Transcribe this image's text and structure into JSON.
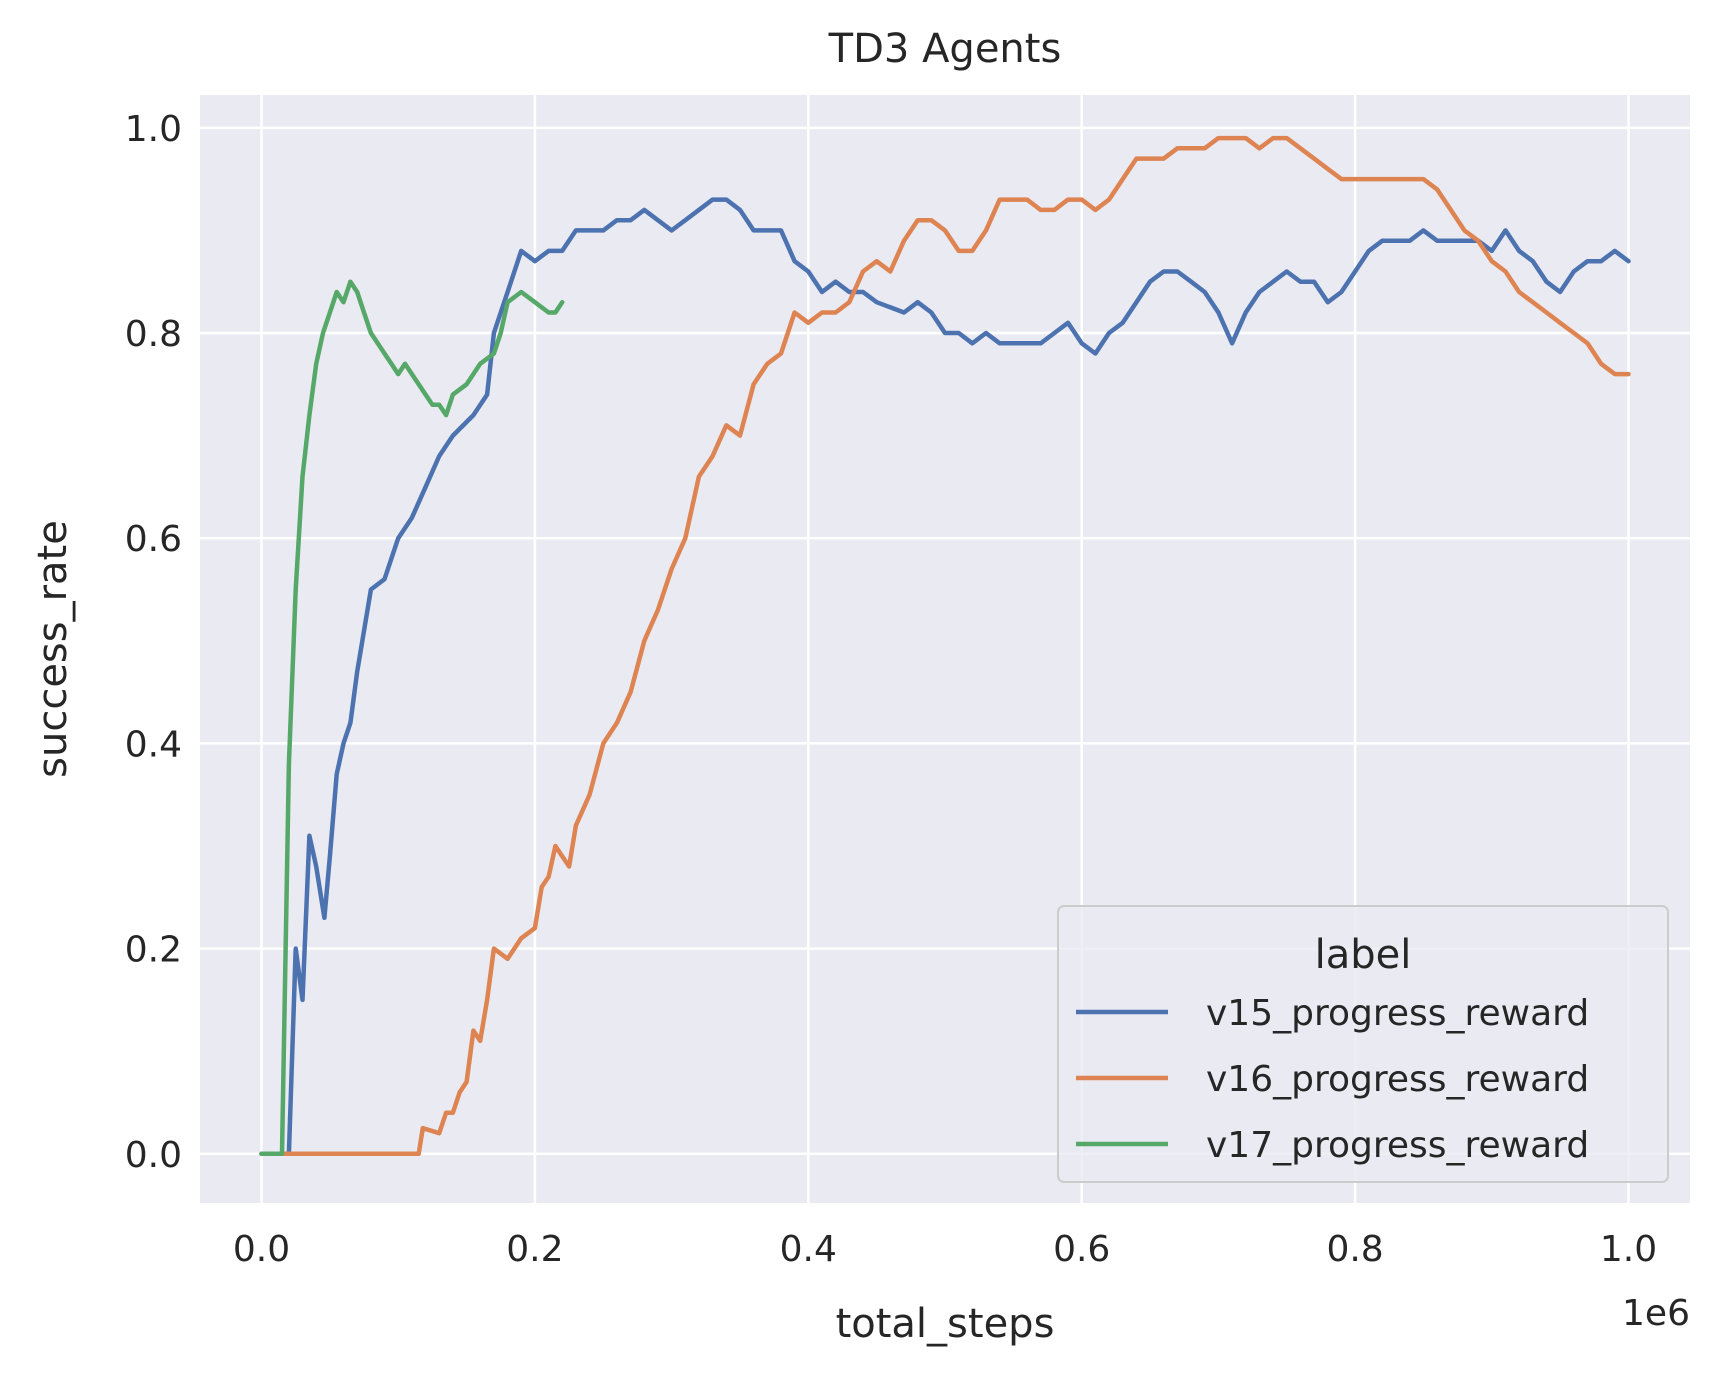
{
  "chart_data": {
    "type": "line",
    "title": "TD3 Agents",
    "xlabel": "total_steps",
    "ylabel": "success_rate",
    "x_offset_label": "1e6",
    "xlim": [
      -0.045,
      1.045
    ],
    "ylim": [
      -0.048,
      1.032
    ],
    "x_ticks": [
      0.0,
      0.2,
      0.4,
      0.6,
      0.8,
      1.0
    ],
    "x_tick_labels": [
      "0.0",
      "0.2",
      "0.4",
      "0.6",
      "0.8",
      "1.0"
    ],
    "y_ticks": [
      0.0,
      0.2,
      0.4,
      0.6,
      0.8,
      1.0
    ],
    "y_tick_labels": [
      "0.0",
      "0.2",
      "0.4",
      "0.6",
      "0.8",
      "1.0"
    ],
    "grid": true,
    "legend": {
      "title": "label",
      "placement": "lower-right"
    },
    "series": [
      {
        "name": "v15_progress_reward",
        "color": "#4c72b0",
        "points": [
          [
            0.0,
            0.0
          ],
          [
            0.02,
            0.0
          ],
          [
            0.025,
            0.2
          ],
          [
            0.03,
            0.15
          ],
          [
            0.035,
            0.31
          ],
          [
            0.04,
            0.28
          ],
          [
            0.046,
            0.23
          ],
          [
            0.05,
            0.29
          ],
          [
            0.055,
            0.37
          ],
          [
            0.06,
            0.4
          ],
          [
            0.065,
            0.42
          ],
          [
            0.07,
            0.47
          ],
          [
            0.08,
            0.55
          ],
          [
            0.09,
            0.56
          ],
          [
            0.1,
            0.6
          ],
          [
            0.11,
            0.62
          ],
          [
            0.12,
            0.65
          ],
          [
            0.13,
            0.68
          ],
          [
            0.14,
            0.7
          ],
          [
            0.155,
            0.72
          ],
          [
            0.165,
            0.74
          ],
          [
            0.17,
            0.8
          ],
          [
            0.18,
            0.84
          ],
          [
            0.19,
            0.88
          ],
          [
            0.2,
            0.87
          ],
          [
            0.21,
            0.88
          ],
          [
            0.22,
            0.88
          ],
          [
            0.23,
            0.9
          ],
          [
            0.25,
            0.9
          ],
          [
            0.26,
            0.91
          ],
          [
            0.27,
            0.91
          ],
          [
            0.28,
            0.92
          ],
          [
            0.29,
            0.91
          ],
          [
            0.3,
            0.9
          ],
          [
            0.31,
            0.91
          ],
          [
            0.32,
            0.92
          ],
          [
            0.33,
            0.93
          ],
          [
            0.34,
            0.93
          ],
          [
            0.35,
            0.92
          ],
          [
            0.36,
            0.9
          ],
          [
            0.38,
            0.9
          ],
          [
            0.39,
            0.87
          ],
          [
            0.4,
            0.86
          ],
          [
            0.41,
            0.84
          ],
          [
            0.42,
            0.85
          ],
          [
            0.43,
            0.84
          ],
          [
            0.44,
            0.84
          ],
          [
            0.45,
            0.83
          ],
          [
            0.47,
            0.82
          ],
          [
            0.48,
            0.83
          ],
          [
            0.49,
            0.82
          ],
          [
            0.5,
            0.8
          ],
          [
            0.51,
            0.8
          ],
          [
            0.52,
            0.79
          ],
          [
            0.53,
            0.8
          ],
          [
            0.54,
            0.79
          ],
          [
            0.55,
            0.79
          ],
          [
            0.56,
            0.79
          ],
          [
            0.57,
            0.79
          ],
          [
            0.58,
            0.8
          ],
          [
            0.59,
            0.81
          ],
          [
            0.6,
            0.79
          ],
          [
            0.61,
            0.78
          ],
          [
            0.62,
            0.8
          ],
          [
            0.63,
            0.81
          ],
          [
            0.64,
            0.83
          ],
          [
            0.65,
            0.85
          ],
          [
            0.66,
            0.86
          ],
          [
            0.67,
            0.86
          ],
          [
            0.68,
            0.85
          ],
          [
            0.69,
            0.84
          ],
          [
            0.7,
            0.82
          ],
          [
            0.71,
            0.79
          ],
          [
            0.72,
            0.82
          ],
          [
            0.73,
            0.84
          ],
          [
            0.74,
            0.85
          ],
          [
            0.75,
            0.86
          ],
          [
            0.76,
            0.85
          ],
          [
            0.77,
            0.85
          ],
          [
            0.78,
            0.83
          ],
          [
            0.79,
            0.84
          ],
          [
            0.8,
            0.86
          ],
          [
            0.81,
            0.88
          ],
          [
            0.82,
            0.89
          ],
          [
            0.83,
            0.89
          ],
          [
            0.84,
            0.89
          ],
          [
            0.85,
            0.9
          ],
          [
            0.86,
            0.89
          ],
          [
            0.87,
            0.89
          ],
          [
            0.88,
            0.89
          ],
          [
            0.89,
            0.89
          ],
          [
            0.9,
            0.88
          ],
          [
            0.91,
            0.9
          ],
          [
            0.92,
            0.88
          ],
          [
            0.93,
            0.87
          ],
          [
            0.94,
            0.85
          ],
          [
            0.95,
            0.84
          ],
          [
            0.96,
            0.86
          ],
          [
            0.97,
            0.87
          ],
          [
            0.98,
            0.87
          ],
          [
            0.99,
            0.88
          ],
          [
            1.0,
            0.87
          ]
        ]
      },
      {
        "name": "v16_progress_reward",
        "color": "#dd8452",
        "points": [
          [
            0.0,
            0.0
          ],
          [
            0.1,
            0.0
          ],
          [
            0.115,
            0.0
          ],
          [
            0.118,
            0.025
          ],
          [
            0.13,
            0.02
          ],
          [
            0.135,
            0.04
          ],
          [
            0.14,
            0.04
          ],
          [
            0.145,
            0.06
          ],
          [
            0.15,
            0.07
          ],
          [
            0.155,
            0.12
          ],
          [
            0.16,
            0.11
          ],
          [
            0.165,
            0.15
          ],
          [
            0.17,
            0.2
          ],
          [
            0.18,
            0.19
          ],
          [
            0.19,
            0.21
          ],
          [
            0.2,
            0.22
          ],
          [
            0.205,
            0.26
          ],
          [
            0.21,
            0.27
          ],
          [
            0.215,
            0.3
          ],
          [
            0.22,
            0.29
          ],
          [
            0.225,
            0.28
          ],
          [
            0.23,
            0.32
          ],
          [
            0.24,
            0.35
          ],
          [
            0.25,
            0.4
          ],
          [
            0.26,
            0.42
          ],
          [
            0.27,
            0.45
          ],
          [
            0.28,
            0.5
          ],
          [
            0.29,
            0.53
          ],
          [
            0.3,
            0.57
          ],
          [
            0.31,
            0.6
          ],
          [
            0.32,
            0.66
          ],
          [
            0.33,
            0.68
          ],
          [
            0.34,
            0.71
          ],
          [
            0.35,
            0.7
          ],
          [
            0.36,
            0.75
          ],
          [
            0.37,
            0.77
          ],
          [
            0.38,
            0.78
          ],
          [
            0.39,
            0.82
          ],
          [
            0.4,
            0.81
          ],
          [
            0.41,
            0.82
          ],
          [
            0.42,
            0.82
          ],
          [
            0.43,
            0.83
          ],
          [
            0.44,
            0.86
          ],
          [
            0.45,
            0.87
          ],
          [
            0.46,
            0.86
          ],
          [
            0.47,
            0.89
          ],
          [
            0.48,
            0.91
          ],
          [
            0.49,
            0.91
          ],
          [
            0.5,
            0.9
          ],
          [
            0.51,
            0.88
          ],
          [
            0.52,
            0.88
          ],
          [
            0.53,
            0.9
          ],
          [
            0.54,
            0.93
          ],
          [
            0.55,
            0.93
          ],
          [
            0.56,
            0.93
          ],
          [
            0.57,
            0.92
          ],
          [
            0.58,
            0.92
          ],
          [
            0.59,
            0.93
          ],
          [
            0.6,
            0.93
          ],
          [
            0.61,
            0.92
          ],
          [
            0.62,
            0.93
          ],
          [
            0.63,
            0.95
          ],
          [
            0.64,
            0.97
          ],
          [
            0.65,
            0.97
          ],
          [
            0.66,
            0.97
          ],
          [
            0.67,
            0.98
          ],
          [
            0.69,
            0.98
          ],
          [
            0.7,
            0.99
          ],
          [
            0.72,
            0.99
          ],
          [
            0.73,
            0.98
          ],
          [
            0.74,
            0.99
          ],
          [
            0.75,
            0.99
          ],
          [
            0.76,
            0.98
          ],
          [
            0.77,
            0.97
          ],
          [
            0.78,
            0.96
          ],
          [
            0.79,
            0.95
          ],
          [
            0.82,
            0.95
          ],
          [
            0.85,
            0.95
          ],
          [
            0.86,
            0.94
          ],
          [
            0.87,
            0.92
          ],
          [
            0.88,
            0.9
          ],
          [
            0.89,
            0.89
          ],
          [
            0.9,
            0.87
          ],
          [
            0.91,
            0.86
          ],
          [
            0.92,
            0.84
          ],
          [
            0.93,
            0.83
          ],
          [
            0.94,
            0.82
          ],
          [
            0.95,
            0.81
          ],
          [
            0.96,
            0.8
          ],
          [
            0.97,
            0.79
          ],
          [
            0.98,
            0.77
          ],
          [
            0.99,
            0.76
          ],
          [
            1.0,
            0.76
          ]
        ]
      },
      {
        "name": "v17_progress_reward",
        "color": "#55a868",
        "points": [
          [
            0.0,
            0.0
          ],
          [
            0.015,
            0.0
          ],
          [
            0.02,
            0.38
          ],
          [
            0.025,
            0.55
          ],
          [
            0.03,
            0.66
          ],
          [
            0.035,
            0.72
          ],
          [
            0.04,
            0.77
          ],
          [
            0.045,
            0.8
          ],
          [
            0.05,
            0.82
          ],
          [
            0.055,
            0.84
          ],
          [
            0.06,
            0.83
          ],
          [
            0.065,
            0.85
          ],
          [
            0.07,
            0.84
          ],
          [
            0.075,
            0.82
          ],
          [
            0.08,
            0.8
          ],
          [
            0.085,
            0.79
          ],
          [
            0.09,
            0.78
          ],
          [
            0.095,
            0.77
          ],
          [
            0.1,
            0.76
          ],
          [
            0.105,
            0.77
          ],
          [
            0.11,
            0.76
          ],
          [
            0.115,
            0.75
          ],
          [
            0.12,
            0.74
          ],
          [
            0.125,
            0.73
          ],
          [
            0.13,
            0.73
          ],
          [
            0.135,
            0.72
          ],
          [
            0.14,
            0.74
          ],
          [
            0.15,
            0.75
          ],
          [
            0.16,
            0.77
          ],
          [
            0.17,
            0.78
          ],
          [
            0.175,
            0.8
          ],
          [
            0.18,
            0.83
          ],
          [
            0.19,
            0.84
          ],
          [
            0.2,
            0.83
          ],
          [
            0.21,
            0.82
          ],
          [
            0.215,
            0.82
          ],
          [
            0.22,
            0.83
          ]
        ]
      }
    ]
  }
}
